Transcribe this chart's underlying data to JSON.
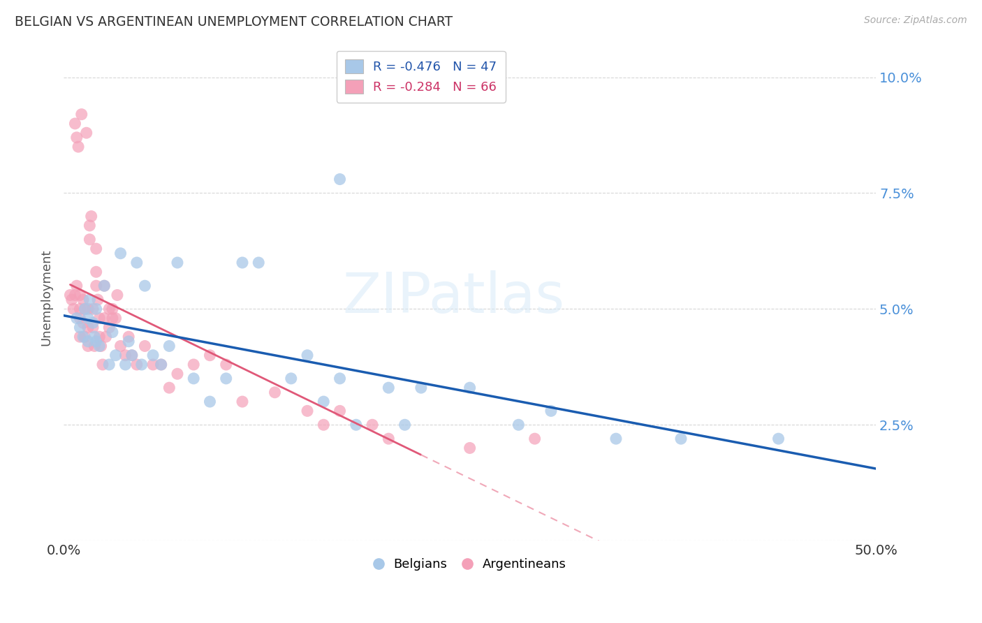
{
  "title": "BELGIAN VS ARGENTINEAN UNEMPLOYMENT CORRELATION CHART",
  "source": "Source: ZipAtlas.com",
  "ylabel": "Unemployment",
  "xlim": [
    0.0,
    0.5
  ],
  "ylim": [
    0.0,
    0.105
  ],
  "yticks": [
    0.0,
    0.025,
    0.05,
    0.075,
    0.1
  ],
  "ytick_labels": [
    "",
    "2.5%",
    "5.0%",
    "7.5%",
    "10.0%"
  ],
  "xticks": [
    0.0,
    0.1,
    0.2,
    0.3,
    0.4,
    0.5
  ],
  "xtick_labels": [
    "0.0%",
    "",
    "",
    "",
    "",
    "50.0%"
  ],
  "legend_labels": [
    "Belgians",
    "Argentineans"
  ],
  "blue_color": "#a8c8e8",
  "pink_color": "#f4a0b8",
  "blue_line_color": "#1a5cb0",
  "pink_line_color": "#e05878",
  "pink_line_dashed_color": "#f0a8b8",
  "background_color": "#ffffff",
  "grid_color": "#cccccc",
  "watermark": "ZIPatlas",
  "blue_R": "-0.476",
  "blue_N": "47",
  "pink_R": "-0.284",
  "pink_N": "66",
  "blue_points_x": [
    0.008,
    0.01,
    0.012,
    0.013,
    0.015,
    0.015,
    0.016,
    0.018,
    0.019,
    0.02,
    0.02,
    0.022,
    0.025,
    0.028,
    0.03,
    0.032,
    0.035,
    0.038,
    0.04,
    0.042,
    0.045,
    0.048,
    0.05,
    0.055,
    0.06,
    0.065,
    0.07,
    0.08,
    0.09,
    0.1,
    0.11,
    0.12,
    0.14,
    0.15,
    0.16,
    0.17,
    0.18,
    0.2,
    0.21,
    0.22,
    0.25,
    0.28,
    0.3,
    0.34,
    0.38,
    0.44,
    0.17
  ],
  "blue_points_y": [
    0.048,
    0.046,
    0.044,
    0.05,
    0.048,
    0.043,
    0.052,
    0.047,
    0.044,
    0.05,
    0.043,
    0.042,
    0.055,
    0.038,
    0.045,
    0.04,
    0.062,
    0.038,
    0.043,
    0.04,
    0.06,
    0.038,
    0.055,
    0.04,
    0.038,
    0.042,
    0.06,
    0.035,
    0.03,
    0.035,
    0.06,
    0.06,
    0.035,
    0.04,
    0.03,
    0.035,
    0.025,
    0.033,
    0.025,
    0.033,
    0.033,
    0.025,
    0.028,
    0.022,
    0.022,
    0.022,
    0.078
  ],
  "pink_points_x": [
    0.004,
    0.005,
    0.006,
    0.007,
    0.007,
    0.008,
    0.008,
    0.009,
    0.01,
    0.01,
    0.01,
    0.01,
    0.011,
    0.012,
    0.012,
    0.013,
    0.013,
    0.014,
    0.015,
    0.015,
    0.015,
    0.016,
    0.016,
    0.017,
    0.018,
    0.018,
    0.019,
    0.02,
    0.02,
    0.02,
    0.021,
    0.022,
    0.022,
    0.023,
    0.024,
    0.025,
    0.025,
    0.026,
    0.028,
    0.028,
    0.03,
    0.03,
    0.032,
    0.033,
    0.035,
    0.038,
    0.04,
    0.042,
    0.045,
    0.05,
    0.055,
    0.06,
    0.065,
    0.07,
    0.08,
    0.09,
    0.1,
    0.11,
    0.13,
    0.15,
    0.16,
    0.17,
    0.19,
    0.2,
    0.25,
    0.29
  ],
  "pink_points_y": [
    0.053,
    0.052,
    0.05,
    0.053,
    0.09,
    0.055,
    0.087,
    0.085,
    0.053,
    0.05,
    0.048,
    0.044,
    0.092,
    0.052,
    0.047,
    0.05,
    0.044,
    0.088,
    0.05,
    0.046,
    0.042,
    0.068,
    0.065,
    0.07,
    0.05,
    0.046,
    0.042,
    0.063,
    0.058,
    0.055,
    0.052,
    0.048,
    0.044,
    0.042,
    0.038,
    0.055,
    0.048,
    0.044,
    0.05,
    0.046,
    0.05,
    0.048,
    0.048,
    0.053,
    0.042,
    0.04,
    0.044,
    0.04,
    0.038,
    0.042,
    0.038,
    0.038,
    0.033,
    0.036,
    0.038,
    0.04,
    0.038,
    0.03,
    0.032,
    0.028,
    0.025,
    0.028,
    0.025,
    0.022,
    0.02,
    0.022
  ]
}
